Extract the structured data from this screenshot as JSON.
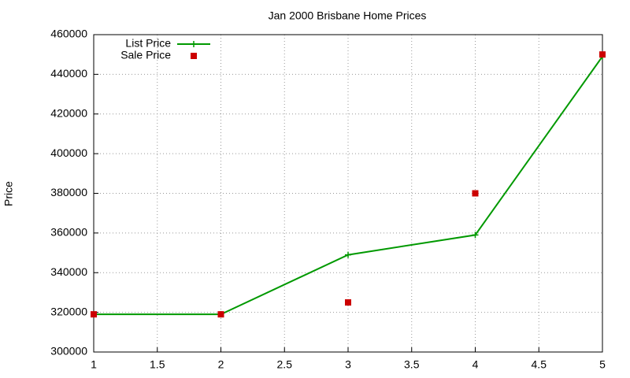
{
  "chart_data": {
    "type": "line",
    "title": "Jan 2000 Brisbane Home Prices",
    "y_label": "Price",
    "x": [
      1,
      2,
      3,
      4,
      5
    ],
    "series": [
      {
        "name": "List Price",
        "color": "#009900",
        "style": "linespoints",
        "values": [
          319000,
          319000,
          349000,
          359000,
          449000
        ]
      },
      {
        "name": "Sale Price",
        "color": "#cc0000",
        "style": "points",
        "values": [
          319000,
          319000,
          325000,
          380000,
          450000
        ]
      }
    ],
    "xlim": [
      1,
      5
    ],
    "xticks": [
      1,
      1.5,
      2,
      2.5,
      3,
      3.5,
      4,
      4.5,
      5
    ],
    "ylim": [
      300000,
      460000
    ],
    "yticks": [
      300000,
      320000,
      340000,
      360000,
      380000,
      400000,
      420000,
      440000,
      460000
    ],
    "grid": true,
    "legend": "top-left"
  }
}
